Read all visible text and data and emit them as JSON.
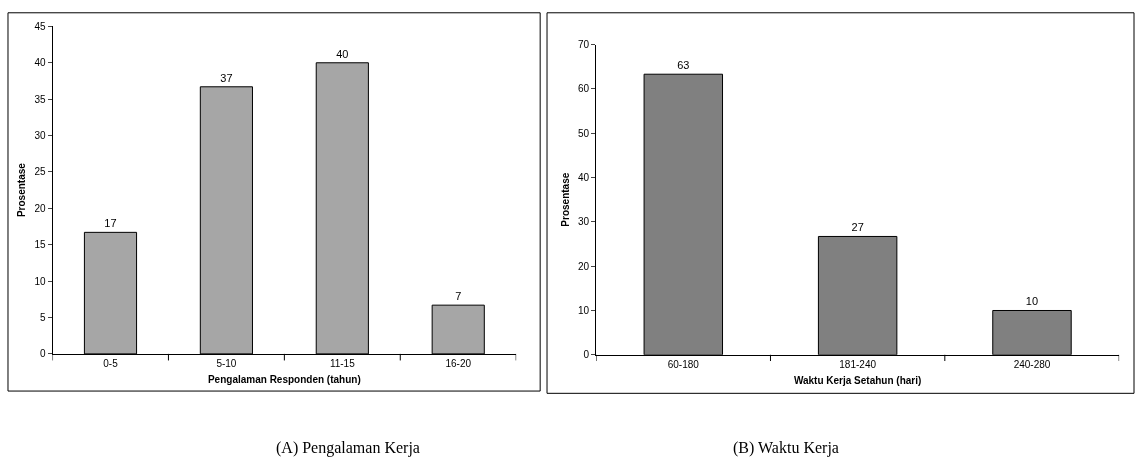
{
  "chart_data": [
    {
      "type": "bar",
      "categories": [
        "0-5",
        "5-10",
        "11-15",
        "16-20"
      ],
      "values": [
        16.7,
        36.7,
        40,
        6.7
      ],
      "value_labels": [
        "17",
        "37",
        "40",
        "7"
      ],
      "color": "#a6a6a6",
      "xlabel": "Pengalaman Responden (tahun)",
      "ylabel": "Prosentase",
      "ylim": [
        0,
        45
      ],
      "yticks": [
        0,
        5,
        10,
        15,
        20,
        25,
        30,
        35,
        40,
        45
      ],
      "annotations": [
        "(A) Pengalaman Kerja"
      ]
    },
    {
      "type": "bar",
      "categories": [
        "60-180",
        "181-240",
        "240-280"
      ],
      "values": [
        63.3,
        26.7,
        10
      ],
      "value_labels": [
        "63",
        "27",
        "10"
      ],
      "color": "#808080",
      "xlabel": "Waktu Kerja Setahun (hari)",
      "ylabel": "Prosentase",
      "ylim": [
        0,
        70
      ],
      "yticks": [
        0,
        10,
        20,
        30,
        40,
        50,
        60,
        70
      ],
      "annotations": [
        "(B) Waktu Kerja"
      ]
    }
  ]
}
